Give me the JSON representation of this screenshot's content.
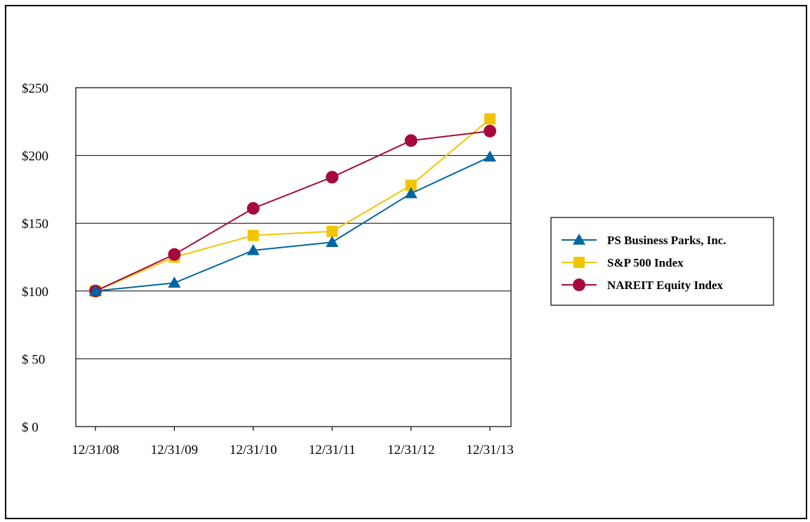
{
  "chart_data": {
    "type": "line",
    "title": "",
    "xlabel": "",
    "ylabel": "",
    "categories": [
      "12/31/08",
      "12/31/09",
      "12/31/10",
      "12/31/11",
      "12/31/12",
      "12/31/13"
    ],
    "ylim": [
      0,
      250
    ],
    "yticks": [
      0,
      50,
      100,
      150,
      200,
      250
    ],
    "ytick_labels": [
      "$ 0",
      "$ 50",
      "$100",
      "$150",
      "$200",
      "$250"
    ],
    "grid": true,
    "legend_position": "right",
    "series": [
      {
        "name": "PS Business Parks, Inc.",
        "marker": "triangle",
        "color": "#0066a1",
        "values": [
          100,
          106,
          130,
          136,
          172,
          199
        ]
      },
      {
        "name": "S&P 500 Index",
        "marker": "square",
        "color": "#f2c500",
        "values": [
          100,
          125,
          141,
          144,
          178,
          227
        ]
      },
      {
        "name": "NAREIT Equity Index",
        "marker": "circle",
        "color": "#a6093d",
        "values": [
          100,
          127,
          161,
          184,
          211,
          218
        ]
      }
    ]
  }
}
